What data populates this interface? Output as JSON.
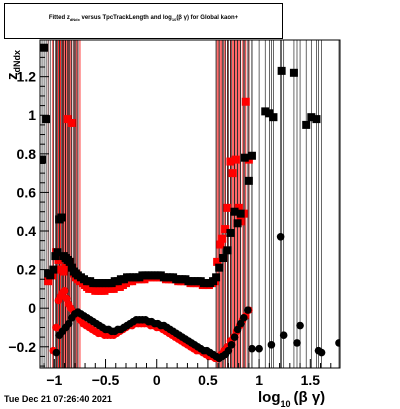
{
  "title": {
    "part1": "Fitted  z",
    "sub1": "dNdx",
    "part2": " versus TpcTrackLength and log",
    "sub2": "10",
    "part3": "(β γ) for Global kaon+"
  },
  "timestamp": "Tue Dec 21 07:26:40 2021",
  "chart_data": {
    "type": "scatter",
    "xlabel": "log10 (β γ)",
    "xlabel_main": "log",
    "xlabel_sub": "10",
    "xlabel_rest": "(β γ)",
    "ylabel": "z_dNdx",
    "ylabel_main": "z",
    "ylabel_sub": "dNdx",
    "xlim": [
      -1.14,
      1.79
    ],
    "ylim": [
      -0.31,
      1.39
    ],
    "x_ticks": [
      -1,
      -0.5,
      0,
      0.5,
      1,
      1.5
    ],
    "x_tick_labels": [
      "−1",
      "−0.5",
      "0",
      "0.5",
      "1",
      "1.5"
    ],
    "y_ticks": [
      -0.2,
      0,
      0.2,
      0.4,
      0.6,
      0.8,
      1,
      1.2
    ],
    "y_tick_labels": [
      "−0.2",
      "0",
      "0.2",
      "0.4",
      "0.6",
      "0.8",
      "1",
      "1.2"
    ],
    "grid": false,
    "colors": {
      "red": "#ff0000",
      "black": "#000000"
    },
    "series": [
      {
        "marker": "square",
        "color": "#ff0000",
        "points": [
          [
            -1.06,
            0.14
          ],
          [
            -1.02,
            0.17
          ],
          [
            -0.98,
            0.29
          ],
          [
            -0.96,
            0.25
          ],
          [
            -0.94,
            0.2
          ],
          [
            -0.91,
            0.19
          ],
          [
            -0.89,
            0.21
          ],
          [
            -0.87,
            0.98
          ],
          [
            -0.85,
            0.24
          ],
          [
            -0.83,
            0.96
          ],
          [
            -0.81,
            0.18
          ],
          [
            -0.79,
            0.16
          ],
          [
            -0.77,
            0.15
          ],
          [
            -0.75,
            0.14
          ],
          [
            -0.72,
            0.13
          ],
          [
            -0.7,
            0.12
          ],
          [
            -0.68,
            0.11
          ],
          [
            -0.66,
            0.1
          ],
          [
            -0.63,
            0.1
          ],
          [
            -0.6,
            0.09
          ],
          [
            -0.57,
            0.09
          ],
          [
            -0.54,
            0.09
          ],
          [
            -0.51,
            0.09
          ],
          [
            -0.48,
            0.1
          ],
          [
            -0.45,
            0.1
          ],
          [
            -0.42,
            0.1
          ],
          [
            -0.39,
            0.11
          ],
          [
            -0.36,
            0.11
          ],
          [
            -0.33,
            0.12
          ],
          [
            -0.3,
            0.13
          ],
          [
            -0.27,
            0.14
          ],
          [
            -0.24,
            0.14
          ],
          [
            -0.21,
            0.15
          ],
          [
            -0.18,
            0.15
          ],
          [
            -0.15,
            0.15
          ],
          [
            -0.12,
            0.15
          ],
          [
            -0.09,
            0.16
          ],
          [
            -0.06,
            0.16
          ],
          [
            -0.03,
            0.16
          ],
          [
            0.0,
            0.16
          ],
          [
            0.03,
            0.16
          ],
          [
            0.06,
            0.16
          ],
          [
            0.09,
            0.15
          ],
          [
            0.12,
            0.15
          ],
          [
            0.15,
            0.15
          ],
          [
            0.18,
            0.15
          ],
          [
            0.21,
            0.14
          ],
          [
            0.24,
            0.14
          ],
          [
            0.27,
            0.14
          ],
          [
            0.3,
            0.14
          ],
          [
            0.33,
            0.13
          ],
          [
            0.36,
            0.13
          ],
          [
            0.39,
            0.13
          ],
          [
            0.42,
            0.13
          ],
          [
            0.45,
            0.12
          ],
          [
            0.48,
            0.12
          ],
          [
            0.51,
            0.12
          ],
          [
            0.54,
            0.13
          ],
          [
            0.57,
            0.14
          ],
          [
            0.59,
            0.24
          ],
          [
            0.62,
            0.33
          ],
          [
            0.64,
            0.36
          ],
          [
            0.67,
            0.41
          ],
          [
            0.69,
            0.52
          ],
          [
            0.72,
            0.76
          ],
          [
            0.74,
            0.7
          ],
          [
            0.77,
            0.77
          ],
          [
            0.8,
            0.52
          ],
          [
            0.82,
            0.45
          ],
          [
            0.85,
            0.49
          ],
          [
            0.87,
            1.07
          ],
          [
            0.9,
            0.77
          ]
        ]
      },
      {
        "marker": "circle",
        "color": "#ff0000",
        "points": [
          [
            -1.01,
            -0.22
          ],
          [
            -0.98,
            -0.1
          ],
          [
            -0.96,
            0.04
          ],
          [
            -0.94,
            0.06
          ],
          [
            -0.92,
            0.08
          ],
          [
            -0.9,
            0.09
          ],
          [
            -0.88,
            0.05
          ],
          [
            -0.86,
            0.02
          ],
          [
            -0.84,
            0.0
          ],
          [
            -0.81,
            -0.02
          ],
          [
            -0.78,
            -0.04
          ],
          [
            -0.75,
            -0.06
          ],
          [
            -0.72,
            -0.08
          ],
          [
            -0.69,
            -0.09
          ],
          [
            -0.66,
            -0.1
          ],
          [
            -0.63,
            -0.11
          ],
          [
            -0.6,
            -0.12
          ],
          [
            -0.57,
            -0.13
          ],
          [
            -0.54,
            -0.13
          ],
          [
            -0.51,
            -0.14
          ],
          [
            -0.48,
            -0.14
          ],
          [
            -0.45,
            -0.14
          ],
          [
            -0.42,
            -0.14
          ],
          [
            -0.39,
            -0.13
          ],
          [
            -0.36,
            -0.12
          ],
          [
            -0.33,
            -0.11
          ],
          [
            -0.3,
            -0.1
          ],
          [
            -0.27,
            -0.09
          ],
          [
            -0.24,
            -0.09
          ],
          [
            -0.21,
            -0.08
          ],
          [
            -0.18,
            -0.08
          ],
          [
            -0.15,
            -0.08
          ],
          [
            -0.12,
            -0.08
          ],
          [
            -0.09,
            -0.08
          ],
          [
            -0.06,
            -0.09
          ],
          [
            -0.03,
            -0.09
          ],
          [
            0.0,
            -0.1
          ],
          [
            0.03,
            -0.1
          ],
          [
            0.06,
            -0.11
          ],
          [
            0.09,
            -0.12
          ],
          [
            0.12,
            -0.13
          ],
          [
            0.15,
            -0.14
          ],
          [
            0.18,
            -0.15
          ],
          [
            0.21,
            -0.16
          ],
          [
            0.24,
            -0.17
          ],
          [
            0.27,
            -0.18
          ],
          [
            0.3,
            -0.19
          ],
          [
            0.33,
            -0.2
          ],
          [
            0.36,
            -0.21
          ],
          [
            0.39,
            -0.22
          ],
          [
            0.42,
            -0.22
          ],
          [
            0.45,
            -0.23
          ],
          [
            0.48,
            -0.24
          ],
          [
            0.51,
            -0.25
          ],
          [
            0.54,
            -0.25
          ],
          [
            0.57,
            -0.26
          ],
          [
            0.6,
            -0.26
          ],
          [
            0.63,
            -0.24
          ],
          [
            0.66,
            -0.22
          ],
          [
            0.69,
            -0.2
          ],
          [
            0.72,
            -0.17
          ],
          [
            0.75,
            -0.15
          ],
          [
            0.78,
            -0.12
          ],
          [
            0.81,
            -0.09
          ],
          [
            0.84,
            -0.06
          ],
          [
            0.87,
            -0.04
          ],
          [
            0.9,
            -0.01
          ]
        ]
      },
      {
        "marker": "square",
        "color": "#000000",
        "points": [
          [
            -1.12,
            0.77
          ],
          [
            -1.1,
            1.35
          ],
          [
            -1.08,
            0.98
          ],
          [
            -1.06,
            0.18
          ],
          [
            -1.04,
            0.17
          ],
          [
            -1.01,
            0.2
          ],
          [
            -0.99,
            0.27
          ],
          [
            -0.97,
            0.29
          ],
          [
            -0.95,
            0.46
          ],
          [
            -0.93,
            0.47
          ],
          [
            -0.91,
            0.27
          ],
          [
            -0.89,
            0.26
          ],
          [
            -0.87,
            0.25
          ],
          [
            -0.85,
            0.24
          ],
          [
            -0.83,
            0.21
          ],
          [
            -0.81,
            0.19
          ],
          [
            -0.79,
            0.18
          ],
          [
            -0.77,
            0.17
          ],
          [
            -0.74,
            0.16
          ],
          [
            -0.71,
            0.15
          ],
          [
            -0.68,
            0.14
          ],
          [
            -0.65,
            0.14
          ],
          [
            -0.62,
            0.13
          ],
          [
            -0.59,
            0.13
          ],
          [
            -0.56,
            0.13
          ],
          [
            -0.53,
            0.13
          ],
          [
            -0.5,
            0.13
          ],
          [
            -0.47,
            0.13
          ],
          [
            -0.44,
            0.13
          ],
          [
            -0.41,
            0.14
          ],
          [
            -0.38,
            0.14
          ],
          [
            -0.35,
            0.15
          ],
          [
            -0.32,
            0.15
          ],
          [
            -0.29,
            0.16
          ],
          [
            -0.26,
            0.16
          ],
          [
            -0.23,
            0.16
          ],
          [
            -0.2,
            0.16
          ],
          [
            -0.17,
            0.16
          ],
          [
            -0.14,
            0.17
          ],
          [
            -0.11,
            0.17
          ],
          [
            -0.08,
            0.17
          ],
          [
            -0.05,
            0.17
          ],
          [
            -0.02,
            0.17
          ],
          [
            0.01,
            0.17
          ],
          [
            0.04,
            0.17
          ],
          [
            0.07,
            0.16
          ],
          [
            0.1,
            0.16
          ],
          [
            0.13,
            0.16
          ],
          [
            0.16,
            0.16
          ],
          [
            0.19,
            0.15
          ],
          [
            0.22,
            0.15
          ],
          [
            0.25,
            0.15
          ],
          [
            0.28,
            0.15
          ],
          [
            0.31,
            0.14
          ],
          [
            0.34,
            0.14
          ],
          [
            0.37,
            0.14
          ],
          [
            0.4,
            0.14
          ],
          [
            0.43,
            0.14
          ],
          [
            0.46,
            0.13
          ],
          [
            0.49,
            0.13
          ],
          [
            0.52,
            0.13
          ],
          [
            0.55,
            0.14
          ],
          [
            0.58,
            0.16
          ],
          [
            0.61,
            0.21
          ],
          [
            0.65,
            0.26
          ],
          [
            0.69,
            0.3
          ],
          [
            0.72,
            0.39
          ],
          [
            0.76,
            0.5
          ],
          [
            0.79,
            0.44
          ],
          [
            0.82,
            0.49
          ],
          [
            0.86,
            0.78
          ],
          [
            0.9,
            0.66
          ],
          [
            0.93,
            0.79
          ],
          [
            1.06,
            1.02
          ],
          [
            1.1,
            1.01
          ],
          [
            1.14,
            0.99
          ],
          [
            1.22,
            1.23
          ],
          [
            1.34,
            1.22
          ],
          [
            1.46,
            0.95
          ],
          [
            1.51,
            0.99
          ],
          [
            1.56,
            0.98
          ]
        ]
      },
      {
        "marker": "circle",
        "color": "#000000",
        "points": [
          [
            -0.98,
            -0.23
          ],
          [
            -0.95,
            -0.14
          ],
          [
            -0.92,
            -0.12
          ],
          [
            -0.89,
            -0.1
          ],
          [
            -0.86,
            -0.08
          ],
          [
            -0.83,
            -0.05
          ],
          [
            -0.8,
            -0.03
          ],
          [
            -0.77,
            -0.02
          ],
          [
            -0.74,
            -0.03
          ],
          [
            -0.71,
            -0.04
          ],
          [
            -0.68,
            -0.05
          ],
          [
            -0.65,
            -0.06
          ],
          [
            -0.62,
            -0.07
          ],
          [
            -0.59,
            -0.08
          ],
          [
            -0.56,
            -0.09
          ],
          [
            -0.53,
            -0.1
          ],
          [
            -0.5,
            -0.11
          ],
          [
            -0.47,
            -0.11
          ],
          [
            -0.44,
            -0.12
          ],
          [
            -0.41,
            -0.12
          ],
          [
            -0.38,
            -0.11
          ],
          [
            -0.35,
            -0.11
          ],
          [
            -0.32,
            -0.1
          ],
          [
            -0.29,
            -0.09
          ],
          [
            -0.26,
            -0.08
          ],
          [
            -0.23,
            -0.07
          ],
          [
            -0.2,
            -0.06
          ],
          [
            -0.17,
            -0.06
          ],
          [
            -0.14,
            -0.06
          ],
          [
            -0.11,
            -0.06
          ],
          [
            -0.08,
            -0.07
          ],
          [
            -0.05,
            -0.07
          ],
          [
            -0.02,
            -0.08
          ],
          [
            0.01,
            -0.08
          ],
          [
            0.04,
            -0.09
          ],
          [
            0.07,
            -0.09
          ],
          [
            0.1,
            -0.1
          ],
          [
            0.13,
            -0.11
          ],
          [
            0.16,
            -0.12
          ],
          [
            0.19,
            -0.13
          ],
          [
            0.22,
            -0.14
          ],
          [
            0.25,
            -0.15
          ],
          [
            0.28,
            -0.16
          ],
          [
            0.31,
            -0.17
          ],
          [
            0.34,
            -0.18
          ],
          [
            0.37,
            -0.19
          ],
          [
            0.4,
            -0.2
          ],
          [
            0.43,
            -0.21
          ],
          [
            0.46,
            -0.22
          ],
          [
            0.49,
            -0.22
          ],
          [
            0.52,
            -0.23
          ],
          [
            0.55,
            -0.24
          ],
          [
            0.58,
            -0.25
          ],
          [
            0.61,
            -0.26
          ],
          [
            0.64,
            -0.25
          ],
          [
            0.67,
            -0.24
          ],
          [
            0.7,
            -0.22
          ],
          [
            0.73,
            -0.19
          ],
          [
            0.76,
            -0.15
          ],
          [
            0.79,
            -0.11
          ],
          [
            0.82,
            -0.08
          ],
          [
            0.85,
            -0.05
          ],
          [
            0.89,
            -0.01
          ],
          [
            0.93,
            -0.21
          ],
          [
            1.0,
            -0.21
          ],
          [
            1.12,
            -0.19
          ],
          [
            1.21,
            0.37
          ],
          [
            1.24,
            -0.14
          ],
          [
            1.37,
            -0.18
          ],
          [
            1.4,
            -0.09
          ],
          [
            1.58,
            -0.22
          ],
          [
            1.61,
            -0.23
          ],
          [
            1.78,
            -0.18
          ]
        ]
      }
    ]
  }
}
